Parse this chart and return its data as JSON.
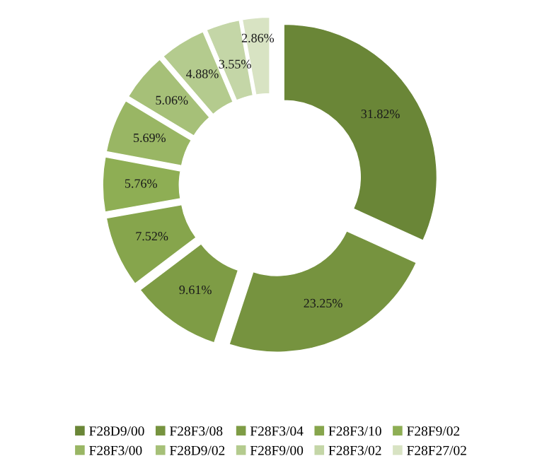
{
  "chart_data": {
    "type": "donut",
    "categories": [
      "F28D9/00",
      "F28F3/08",
      "F28F3/04",
      "F28F3/10",
      "F28F9/02",
      "F28F3/00",
      "F28D9/02",
      "F28F9/00",
      "F28F3/02",
      "F28F27/02"
    ],
    "values": [
      31.82,
      23.25,
      9.61,
      7.52,
      5.76,
      5.69,
      5.06,
      4.88,
      3.55,
      2.86
    ],
    "value_labels": [
      "31.82%",
      "23.25%",
      "9.61%",
      "7.52%",
      "5.76%",
      "5.69%",
      "5.06%",
      "4.88%",
      "3.55%",
      "2.86%"
    ],
    "colors": [
      "#6a8637",
      "#76933f",
      "#7e9c45",
      "#86a54c",
      "#8eae54",
      "#99b664",
      "#a6c078",
      "#b4cb8e",
      "#c4d6a7",
      "#d8e3c3"
    ],
    "legend": "bottom"
  }
}
